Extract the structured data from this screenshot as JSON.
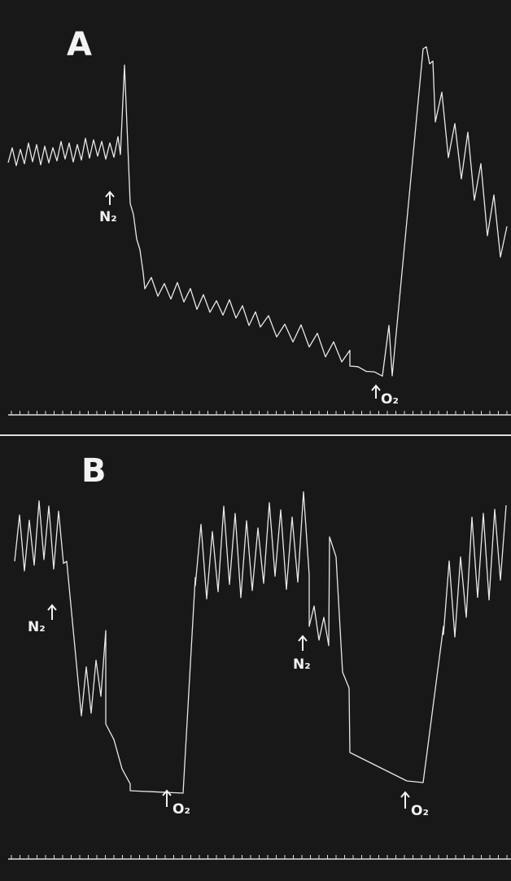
{
  "panels": [
    {
      "label": "A",
      "annotations": [
        "N₂",
        "O₂"
      ]
    },
    {
      "label": "B",
      "annotations": [
        "N₂",
        "O₂",
        "N₂",
        "O₂"
      ]
    }
  ]
}
